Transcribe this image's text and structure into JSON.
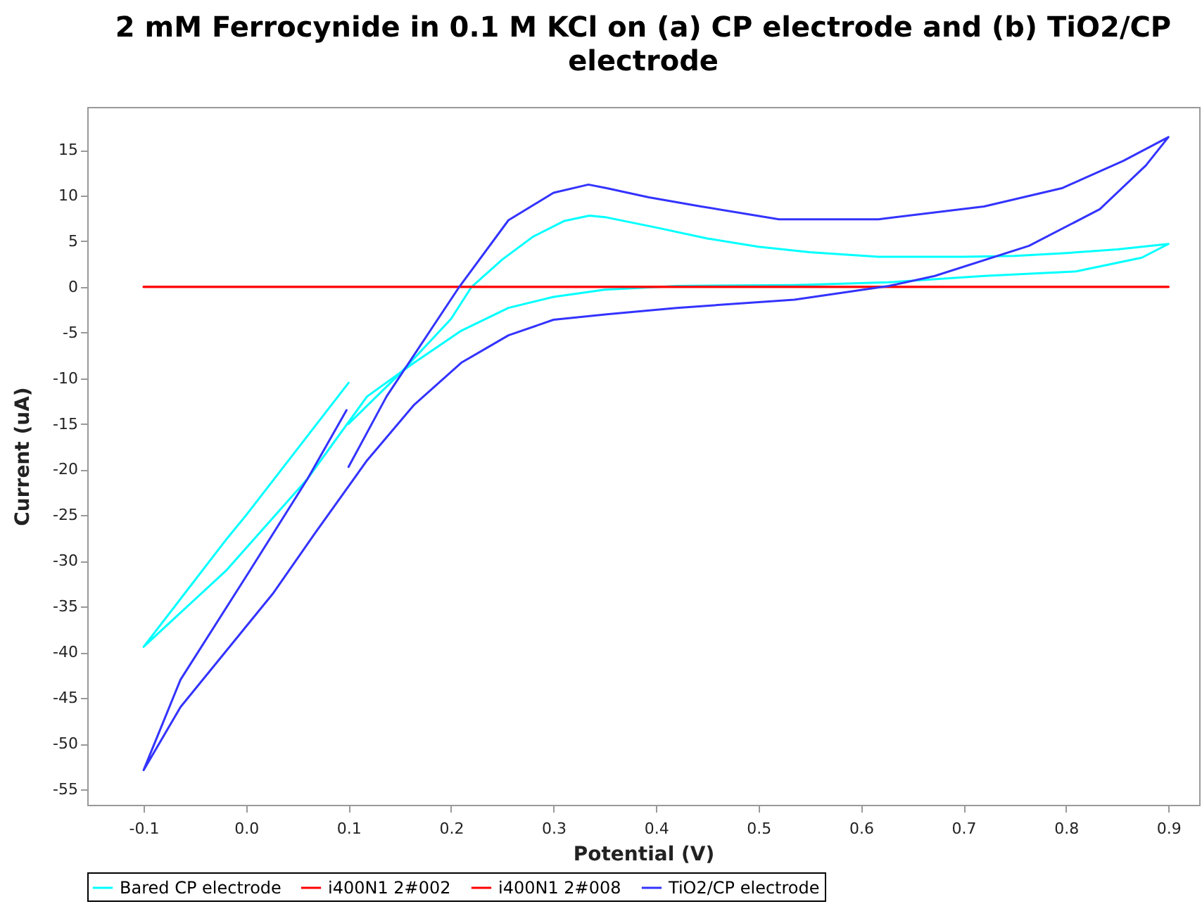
{
  "chart_data": {
    "type": "line",
    "title": "2 mM Ferrocynide in 0.1 M KCl on (a) CP electrode and (b) TiO2/CP electrode",
    "xlabel": "Potential (V)",
    "ylabel": "Current (uA)",
    "xlim": [
      -0.155,
      0.93
    ],
    "xticks": [
      -0.1,
      {
        "value": 0,
        "label": "0.0"
      },
      0.1,
      0.2,
      0.3,
      0.4,
      0.5,
      0.6,
      0.7,
      0.8,
      0.9
    ],
    "ylim": [
      -56.7,
      19.7
    ],
    "yticks": [
      -55,
      -50,
      -45,
      -40,
      -35,
      -30,
      -25,
      -20,
      -15,
      -10,
      -5,
      0,
      5,
      10,
      15
    ],
    "grid": false,
    "legend": "bottom",
    "marker": "none",
    "line_style": "solid",
    "series": [
      {
        "name": "Bared  CP electrode",
        "color": "#00ffff",
        "x": [
          0.1,
          0.15,
          0.2,
          0.22,
          0.25,
          0.28,
          0.31,
          0.335,
          0.352,
          0.4,
          0.45,
          0.5,
          0.55,
          0.617,
          0.65,
          0.7,
          0.75,
          0.8,
          0.85,
          0.9,
          0.874,
          0.81,
          0.72,
          0.627,
          0.535,
          0.42,
          0.35,
          0.3,
          0.256,
          0.21,
          0.164,
          0.118,
          0.06,
          -0.019,
          -0.1,
          -0.019,
          0.0,
          0.1
        ],
        "values": [
          -15,
          -9.5,
          -3.5,
          0,
          3,
          5.5,
          7.2,
          7.8,
          7.6,
          6.5,
          5.3,
          4.4,
          3.8,
          3.3,
          3.3,
          3.3,
          3.4,
          3.7,
          4.1,
          4.7,
          3.2,
          1.7,
          1.2,
          0.5,
          0.2,
          0.1,
          -0.3,
          -1.1,
          -2.3,
          -4.8,
          -8.3,
          -12,
          -21,
          -31,
          -39.4,
          -27.6,
          -25,
          -10.5
        ]
      },
      {
        "name": "i400N1  2#002",
        "color": "#ff0000",
        "x": [
          -0.1,
          0.9
        ],
        "values": [
          0,
          0
        ]
      },
      {
        "name": "i400N1  2#008",
        "color": "#ff0000",
        "x": [
          -0.1,
          0.9
        ],
        "values": [
          0,
          0
        ]
      },
      {
        "name": "TiO2/CP electrode",
        "color": "#3333ff",
        "x": [
          0.1,
          0.137,
          0.208,
          0.256,
          0.3,
          0.334,
          0.352,
          0.393,
          0.444,
          0.52,
          0.617,
          0.72,
          0.796,
          0.856,
          0.9,
          0.878,
          0.833,
          0.764,
          0.672,
          0.627,
          0.535,
          0.42,
          0.352,
          0.3,
          0.256,
          0.21,
          0.164,
          0.118,
          0.067,
          0.026,
          -0.064,
          -0.1,
          -0.064,
          0.004,
          0.06,
          0.098
        ],
        "values": [
          -19.7,
          -12,
          0,
          7.3,
          10.3,
          11.2,
          10.8,
          9.8,
          8.8,
          7.4,
          7.4,
          8.8,
          10.8,
          13.8,
          16.4,
          13.3,
          8.5,
          4.5,
          1.2,
          0.1,
          -1.4,
          -2.3,
          -3,
          -3.6,
          -5.3,
          -8.3,
          -12.9,
          -19,
          -27,
          -33.6,
          -46,
          -52.9,
          -43,
          -31,
          -21,
          -13.5
        ]
      }
    ]
  }
}
